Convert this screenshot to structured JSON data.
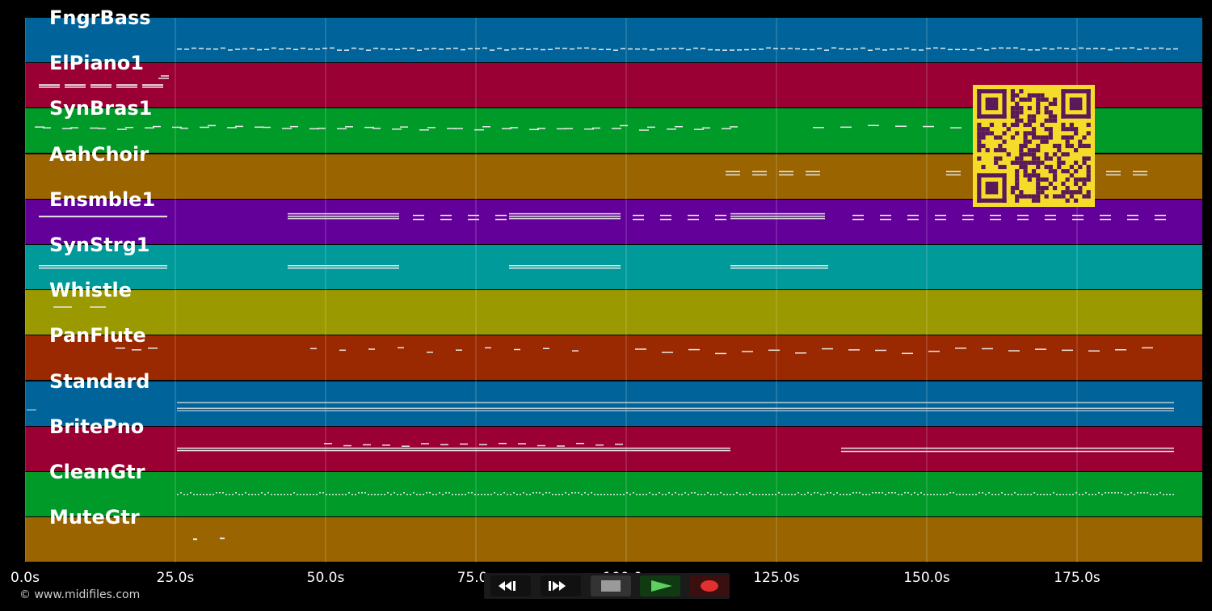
{
  "tracks": [
    {
      "name": "FngrBass",
      "color": "#00649a"
    },
    {
      "name": "ElPiano1",
      "color": "#9a0033"
    },
    {
      "name": "SynBras1",
      "color": "#009a28"
    },
    {
      "name": "AahChoir",
      "color": "#9a6400"
    },
    {
      "name": "Ensmble1",
      "color": "#64009a"
    },
    {
      "name": "SynStrg1",
      "color": "#009a9a"
    },
    {
      "name": "Whistle",
      "color": "#9a9a00"
    },
    {
      "name": "PanFlute",
      "color": "#9a2800"
    },
    {
      "name": "Standard",
      "color": "#00649a"
    },
    {
      "name": "BritePno",
      "color": "#9a0033"
    },
    {
      "name": "CleanGtr",
      "color": "#009a28"
    },
    {
      "name": "MuteGtr",
      "color": "#9a6400"
    }
  ],
  "timeline": {
    "ticks": [
      "0.0s",
      "25.0s",
      "50.0s",
      "75.0s",
      "100.0s",
      "125.0s",
      "150.0s",
      "175.0s"
    ],
    "max_seconds": 196
  },
  "copyright": "© www.midifiles.com",
  "qr": {
    "color": "#f5dc2a",
    "dark": "#5a1a5a",
    "icon": "qr-code-icon"
  },
  "controls": [
    {
      "name": "rewind",
      "icon": "rewind-icon"
    },
    {
      "name": "fast-forward",
      "icon": "fast-forward-icon"
    },
    {
      "name": "stop",
      "icon": "stop-icon"
    },
    {
      "name": "play",
      "icon": "play-icon"
    },
    {
      "name": "record",
      "icon": "record-icon"
    }
  ]
}
